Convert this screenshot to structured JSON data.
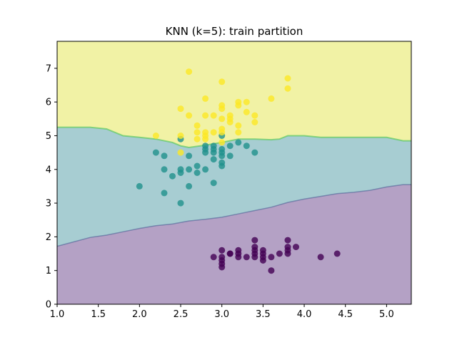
{
  "chart_data": {
    "type": "scatter",
    "title": "KNN (k=5): train partition",
    "xlabel": "",
    "ylabel": "",
    "xlim": [
      1.0,
      5.3
    ],
    "ylim": [
      0,
      7.8
    ],
    "x_ticks": [
      "1.0",
      "1.5",
      "2.0",
      "2.5",
      "3.0",
      "3.5",
      "4.0",
      "4.5",
      "5.0"
    ],
    "x_tick_values": [
      1.0,
      1.5,
      2.0,
      2.5,
      3.0,
      3.5,
      4.0,
      4.5,
      5.0
    ],
    "y_ticks": [
      "0",
      "1",
      "2",
      "3",
      "4",
      "5",
      "6",
      "7"
    ],
    "y_tick_values": [
      0,
      1,
      2,
      3,
      4,
      5,
      6,
      7
    ],
    "grid": false,
    "legend": "none",
    "colors": {
      "class_0": "#440154",
      "class_1": "#21918c",
      "class_2": "#fde725",
      "region_0": "#b4a1c5",
      "region_1": "#a7cdd2",
      "region_2": "#f1f2a5",
      "boundary": "#5ec962"
    },
    "decision_boundaries": {
      "lower": [
        [
          1.0,
          1.72
        ],
        [
          1.2,
          1.85
        ],
        [
          1.4,
          1.98
        ],
        [
          1.6,
          2.05
        ],
        [
          1.8,
          2.15
        ],
        [
          2.0,
          2.25
        ],
        [
          2.2,
          2.33
        ],
        [
          2.4,
          2.38
        ],
        [
          2.6,
          2.47
        ],
        [
          2.8,
          2.52
        ],
        [
          3.0,
          2.58
        ],
        [
          3.2,
          2.68
        ],
        [
          3.4,
          2.78
        ],
        [
          3.6,
          2.88
        ],
        [
          3.8,
          3.02
        ],
        [
          4.0,
          3.12
        ],
        [
          4.2,
          3.2
        ],
        [
          4.4,
          3.28
        ],
        [
          4.6,
          3.32
        ],
        [
          4.8,
          3.38
        ],
        [
          5.0,
          3.48
        ],
        [
          5.2,
          3.55
        ],
        [
          5.3,
          3.55
        ]
      ],
      "upper": [
        [
          1.0,
          5.25
        ],
        [
          1.2,
          5.25
        ],
        [
          1.4,
          5.25
        ],
        [
          1.6,
          5.2
        ],
        [
          1.8,
          5.0
        ],
        [
          2.0,
          4.95
        ],
        [
          2.2,
          4.9
        ],
        [
          2.4,
          4.8
        ],
        [
          2.5,
          4.7
        ],
        [
          2.6,
          4.65
        ],
        [
          2.8,
          4.72
        ],
        [
          3.0,
          4.8
        ],
        [
          3.2,
          4.9
        ],
        [
          3.4,
          4.9
        ],
        [
          3.6,
          4.88
        ],
        [
          3.7,
          4.9
        ],
        [
          3.8,
          5.0
        ],
        [
          4.0,
          5.0
        ],
        [
          4.2,
          4.95
        ],
        [
          4.6,
          4.95
        ],
        [
          5.0,
          4.95
        ],
        [
          5.2,
          4.85
        ],
        [
          5.3,
          4.85
        ]
      ]
    },
    "series": [
      {
        "class": 0,
        "points": [
          [
            3.0,
            1.6
          ],
          [
            3.1,
            1.5
          ],
          [
            3.0,
            1.4
          ],
          [
            2.9,
            1.4
          ],
          [
            3.0,
            1.3
          ],
          [
            3.0,
            1.2
          ],
          [
            3.0,
            1.1
          ],
          [
            3.2,
            1.6
          ],
          [
            3.2,
            1.4
          ],
          [
            3.3,
            1.4
          ],
          [
            3.4,
            1.9
          ],
          [
            3.4,
            1.7
          ],
          [
            3.4,
            1.6
          ],
          [
            3.4,
            1.5
          ],
          [
            3.4,
            1.4
          ],
          [
            3.5,
            1.6
          ],
          [
            3.5,
            1.5
          ],
          [
            3.5,
            1.4
          ],
          [
            3.5,
            1.3
          ],
          [
            3.6,
            1.4
          ],
          [
            3.6,
            1.0
          ],
          [
            3.7,
            1.5
          ],
          [
            3.8,
            1.9
          ],
          [
            3.8,
            1.7
          ],
          [
            3.8,
            1.6
          ],
          [
            3.8,
            1.5
          ],
          [
            3.9,
            1.7
          ],
          [
            4.2,
            1.4
          ],
          [
            4.4,
            1.5
          ],
          [
            3.1,
            1.5
          ],
          [
            3.2,
            1.5
          ]
        ]
      },
      {
        "class": 1,
        "points": [
          [
            2.0,
            3.5
          ],
          [
            2.2,
            4.5
          ],
          [
            2.3,
            4.4
          ],
          [
            2.3,
            4.0
          ],
          [
            2.3,
            3.3
          ],
          [
            2.4,
            3.8
          ],
          [
            2.5,
            4.0
          ],
          [
            2.5,
            3.9
          ],
          [
            2.5,
            3.0
          ],
          [
            2.5,
            4.9
          ],
          [
            2.6,
            4.4
          ],
          [
            2.6,
            4.0
          ],
          [
            2.6,
            3.5
          ],
          [
            2.7,
            4.1
          ],
          [
            2.7,
            3.9
          ],
          [
            2.8,
            4.7
          ],
          [
            2.8,
            4.5
          ],
          [
            2.8,
            4.0
          ],
          [
            2.9,
            4.7
          ],
          [
            2.9,
            4.5
          ],
          [
            2.9,
            4.3
          ],
          [
            2.9,
            3.6
          ],
          [
            3.0,
            5.0
          ],
          [
            3.0,
            4.6
          ],
          [
            3.0,
            4.5
          ],
          [
            3.0,
            4.4
          ],
          [
            3.0,
            4.2
          ],
          [
            3.0,
            4.1
          ],
          [
            3.1,
            4.7
          ],
          [
            3.1,
            4.4
          ],
          [
            3.2,
            4.8
          ],
          [
            3.3,
            4.7
          ],
          [
            3.4,
            4.5
          ],
          [
            2.8,
            4.6
          ],
          [
            2.9,
            4.6
          ]
        ]
      },
      {
        "class": 2,
        "points": [
          [
            2.2,
            5.0
          ],
          [
            2.5,
            5.8
          ],
          [
            2.5,
            5.0
          ],
          [
            2.5,
            4.5
          ],
          [
            2.6,
            6.9
          ],
          [
            2.6,
            5.6
          ],
          [
            2.7,
            5.3
          ],
          [
            2.7,
            5.1
          ],
          [
            2.7,
            4.9
          ],
          [
            2.8,
            6.1
          ],
          [
            2.8,
            5.6
          ],
          [
            2.8,
            5.1
          ],
          [
            2.8,
            4.9
          ],
          [
            2.9,
            5.6
          ],
          [
            3.0,
            6.6
          ],
          [
            3.0,
            5.9
          ],
          [
            3.0,
            5.8
          ],
          [
            3.0,
            5.5
          ],
          [
            3.0,
            5.2
          ],
          [
            3.0,
            4.8
          ],
          [
            3.1,
            5.6
          ],
          [
            3.1,
            5.5
          ],
          [
            3.1,
            5.4
          ],
          [
            3.2,
            6.0
          ],
          [
            3.2,
            5.9
          ],
          [
            3.2,
            5.3
          ],
          [
            3.2,
            5.1
          ],
          [
            3.3,
            6.0
          ],
          [
            3.3,
            5.7
          ],
          [
            3.4,
            5.6
          ],
          [
            3.4,
            5.4
          ],
          [
            3.6,
            6.1
          ],
          [
            3.8,
            6.7
          ],
          [
            3.8,
            6.4
          ],
          [
            2.8,
            5.0
          ],
          [
            2.9,
            5.1
          ],
          [
            3.0,
            5.1
          ]
        ]
      }
    ]
  }
}
